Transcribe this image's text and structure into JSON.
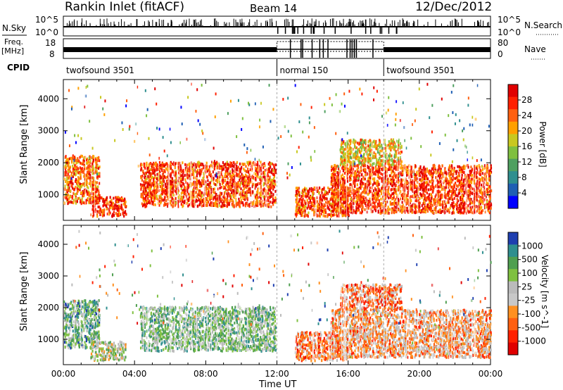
{
  "header": {
    "station": "Rankin Inlet (fitACF)",
    "beam": "Beam 14",
    "date": "12/Dec/2012"
  },
  "strips": {
    "nsky_label": "N.Sky",
    "nsky_ticks": [
      "10^5",
      "10^0"
    ],
    "nsearch_label": "N.Search",
    "nsearch_ticks": [
      "10^5",
      "10^0"
    ],
    "freq_label": "Freq.",
    "freq_unit": "[MHz]",
    "freq_ticks": [
      "18",
      "8"
    ],
    "nave_label": "Nave",
    "nave_ticks": [
      "80",
      "0"
    ],
    "cpid_label": "CPID",
    "cpid_segments": [
      {
        "name": "twofsound 3501",
        "start_hour": 0,
        "end_hour": 12
      },
      {
        "name": "normal 150",
        "start_hour": 12,
        "end_hour": 18
      },
      {
        "name": "twofsound 3501",
        "start_hour": 18,
        "end_hour": 24
      }
    ]
  },
  "colors": {
    "power": [
      "#0000ff",
      "#1f5fb4",
      "#2f8f8f",
      "#4fa060",
      "#7fc040",
      "#c8c820",
      "#ffa000",
      "#ff6010",
      "#ff2000",
      "#e00000"
    ],
    "velocity": [
      "#1e3fb0",
      "#2f8f8f",
      "#4f9f50",
      "#7fc040",
      "#bbbbbb",
      "#c8c8c8",
      "#ff9020",
      "#ff6010",
      "#ff2000",
      "#e00000"
    ]
  },
  "chart_data": [
    {
      "type": "heatmap",
      "name": "power",
      "x": {
        "label": "Time UT",
        "range_hours": [
          0,
          24
        ],
        "ticks": [
          "00:00",
          "04:00",
          "08:00",
          "12:00",
          "16:00",
          "20:00",
          "00:00"
        ]
      },
      "y": {
        "label": "Slant Range [km]",
        "range": [
          200,
          4600
        ],
        "ticks": [
          "1000",
          "2000",
          "3000",
          "4000"
        ]
      },
      "colorbar": {
        "label": "Power [dB]",
        "range": [
          0,
          32
        ],
        "ticks": [
          "28",
          "24",
          "20",
          "16",
          "12",
          "8",
          "4"
        ]
      },
      "echo_regions": [
        {
          "t0": 0.0,
          "t1": 2.0,
          "r0": 700,
          "r1": 2200,
          "level": 0.75
        },
        {
          "t0": 1.5,
          "t1": 3.5,
          "r0": 300,
          "r1": 900,
          "level": 0.85
        },
        {
          "t0": 4.3,
          "t1": 11.9,
          "r0": 600,
          "r1": 2000,
          "level": 0.8
        },
        {
          "t0": 13.0,
          "t1": 16.0,
          "r0": 300,
          "r1": 1200,
          "level": 0.8
        },
        {
          "t0": 15.0,
          "t1": 24.0,
          "r0": 400,
          "r1": 1900,
          "level": 0.82
        },
        {
          "t0": 15.5,
          "t1": 19.0,
          "r0": 1900,
          "r1": 2700,
          "level": 0.6
        }
      ]
    },
    {
      "type": "heatmap",
      "name": "velocity",
      "x": {
        "label": "Time UT",
        "range_hours": [
          0,
          24
        ],
        "ticks": [
          "00:00",
          "04:00",
          "08:00",
          "12:00",
          "16:00",
          "20:00",
          "00:00"
        ]
      },
      "y": {
        "label": "Slant Range [km]",
        "range": [
          200,
          4600
        ],
        "ticks": [
          "1000",
          "2000",
          "3000",
          "4000"
        ]
      },
      "colorbar": {
        "label": "Velocity [m s^-1]",
        "range": [
          -1000,
          1000
        ],
        "ticks": [
          "1000",
          "500",
          "100",
          "25",
          "-25",
          "-100",
          "-500",
          "-1000"
        ]
      },
      "echo_regions": [
        {
          "t0": 0.0,
          "t1": 2.0,
          "r0": 700,
          "r1": 2200,
          "level": 0.3
        },
        {
          "t0": 1.5,
          "t1": 3.5,
          "r0": 300,
          "r1": 900,
          "level": 0.45
        },
        {
          "t0": 4.3,
          "t1": 11.9,
          "r0": 600,
          "r1": 2000,
          "level": 0.35
        },
        {
          "t0": 13.0,
          "t1": 16.0,
          "r0": 300,
          "r1": 1200,
          "level": 0.7
        },
        {
          "t0": 15.0,
          "t1": 24.0,
          "r0": 400,
          "r1": 1900,
          "level": 0.62
        },
        {
          "t0": 15.5,
          "t1": 19.0,
          "r0": 1900,
          "r1": 2700,
          "level": 0.7
        }
      ]
    }
  ]
}
